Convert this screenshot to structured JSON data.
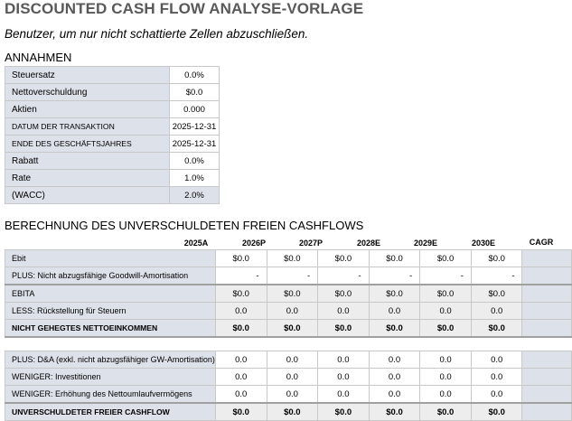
{
  "title": "DISCOUNTED CASH FLOW ANALYSE-VORLAGE",
  "subtitle": "Benutzer, um nur nicht schattierte Zellen abzuschließen.",
  "assumptions": {
    "heading": "ANNAHMEN",
    "rows": [
      {
        "label": "Steuersatz",
        "value": "0.0%"
      },
      {
        "label": "Nettoverschuldung",
        "value": "$0.0"
      },
      {
        "label": "Aktien",
        "value": "0.000"
      },
      {
        "label": "DATUM DER TRANSAKTION",
        "value": "2025-12-31"
      },
      {
        "label": "ENDE DES GESCHÄFTSJAHRES",
        "value": "2025-12-31"
      },
      {
        "label": "Rabatt",
        "value": "0.0%"
      },
      {
        "label": "Rate",
        "value": "1.0%"
      },
      {
        "label": "(WACC)",
        "value": "2.0%"
      }
    ]
  },
  "cashflow": {
    "heading": "BERECHNUNG DES UNVERSCHULDETEN FREIEN CASHFLOWS",
    "years": [
      "2025A",
      "2026P",
      "2027P",
      "2028E",
      "2029E",
      "2030E"
    ],
    "cagr_label": "CAGR",
    "rows": [
      {
        "label": "Ebit",
        "values": [
          "$0.0",
          "$0.0",
          "$0.0",
          "$0.0",
          "$0.0",
          "$0.0"
        ]
      },
      {
        "label": "PLUS: Nicht abzugsfähige Goodwill-Amortisation",
        "values": [
          "-",
          "-",
          "-",
          "-",
          "-",
          "-"
        ]
      },
      {
        "label": "EBITA",
        "values": [
          "$0.0",
          "$0.0",
          "$0.0",
          "$0.0",
          "$0.0",
          "$0.0"
        ]
      },
      {
        "label": "LESS: Rückstellung für Steuern",
        "values": [
          "0.0",
          "0.0",
          "0.0",
          "0.0",
          "0.0",
          "0.0"
        ]
      },
      {
        "label": "NICHT GEHEGTES NETTOEINKOMMEN",
        "values": [
          "$0.0",
          "$0.0",
          "$0.0",
          "$0.0",
          "$0.0",
          "$0.0"
        ]
      },
      {
        "label": "PLUS: D&A (exkl. nicht abzugsfähiger GW-Amortisation)",
        "values": [
          "0.0",
          "0.0",
          "0.0",
          "0.0",
          "0.0",
          "0.0"
        ]
      },
      {
        "label": "WENIGER: Investitionen",
        "values": [
          "0.0",
          "0.0",
          "0.0",
          "0.0",
          "0.0",
          "0.0"
        ]
      },
      {
        "label": "WENIGER: Erhöhung des Nettoumlaufvermögens",
        "values": [
          "0.0",
          "0.0",
          "0.0",
          "0.0",
          "0.0",
          "0.0"
        ]
      },
      {
        "label": "UNVERSCHULDETER FREIER CASHFLOW",
        "values": [
          "$0.0",
          "$0.0",
          "$0.0",
          "$0.0",
          "$0.0",
          "$0.0"
        ]
      }
    ]
  }
}
